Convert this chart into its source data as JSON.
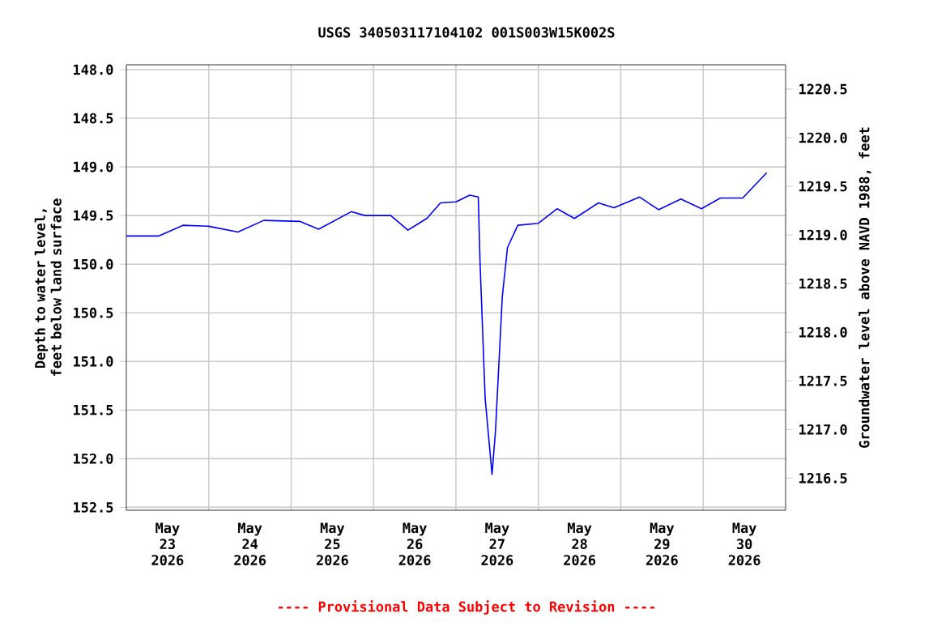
{
  "chart_data": {
    "type": "line",
    "title": "USGS 340503117104102 001S003W15K002S",
    "ylabel": "Depth to water level, feet below land surface",
    "y2label": "Groundwater level above NAVD 1988, feet",
    "annotations": [
      "---- Provisional Data Subject to Revision ----"
    ],
    "xlim": [
      "2026-05-23T00:00",
      "2026-05-31T00:00"
    ],
    "xticks": [
      {
        "value": "2026-05-23T12:00",
        "label": "May 23 2026"
      },
      {
        "value": "2026-05-24T00:00",
        "label": null
      },
      {
        "value": "2026-05-24T12:00",
        "label": "May 24 2026"
      },
      {
        "value": "2026-05-25T00:00",
        "label": null
      },
      {
        "value": "2026-05-25T12:00",
        "label": "May 25 2026"
      },
      {
        "value": "2026-05-26T00:00",
        "label": null
      },
      {
        "value": "2026-05-26T12:00",
        "label": "May 26 2026"
      },
      {
        "value": "2026-05-27T00:00",
        "label": null
      },
      {
        "value": "2026-05-27T12:00",
        "label": "May 27 2026"
      },
      {
        "value": "2026-05-28T00:00",
        "label": null
      },
      {
        "value": "2026-05-28T12:00",
        "label": "May 28 2026"
      },
      {
        "value": "2026-05-29T00:00",
        "label": null
      },
      {
        "value": "2026-05-29T12:00",
        "label": "May 29 2026"
      },
      {
        "value": "2026-05-30T00:00",
        "label": null
      },
      {
        "value": "2026-05-30T12:00",
        "label": "May 30 2026"
      }
    ],
    "ylim": [
      152.53,
      147.95
    ],
    "yticks": [
      {
        "value": 148,
        "label": "148.0"
      },
      148.5,
      {
        "value": 149,
        "label": "149.0"
      },
      149.5,
      {
        "value": 150,
        "label": "150.0"
      },
      150.5,
      {
        "value": 151,
        "label": "151.0"
      },
      151.5,
      {
        "value": 152,
        "label": "152.0"
      },
      152.5
    ],
    "y2lim": [
      1216.17,
      1220.75
    ],
    "y2ticks": [
      1216.5,
      {
        "value": 1217,
        "label": "1217.0"
      },
      1217.5,
      {
        "value": 1218,
        "label": "1218.0"
      },
      1218.5,
      {
        "value": 1219,
        "label": "1219.0"
      },
      1219.5,
      {
        "value": 1220,
        "label": "1220.0"
      },
      1220.5
    ],
    "grid": true,
    "marker": "none",
    "line_style": "solid",
    "series": [
      {
        "color": "#0000ff",
        "x": [
          "2026-05-23T00:00",
          "2026-05-23T09:30",
          "2026-05-23T16:30",
          "2026-05-24T00:00",
          "2026-05-24T08:30",
          "2026-05-24T16:00",
          "2026-05-25T02:30",
          "2026-05-25T08:00",
          "2026-05-25T17:30",
          "2026-05-25T21:30",
          "2026-05-26T05:00",
          "2026-05-26T10:00",
          "2026-05-26T15:30",
          "2026-05-26T19:30",
          "2026-05-27T00:00",
          "2026-05-27T04:00",
          "2026-05-27T06:30",
          "2026-05-27T07:00",
          "2026-05-27T08:30",
          "2026-05-27T10:30",
          "2026-05-27T11:30",
          "2026-05-27T13:30",
          "2026-05-27T15:00",
          "2026-05-27T18:00",
          "2026-05-28T00:00",
          "2026-05-28T05:30",
          "2026-05-28T10:30",
          "2026-05-28T17:30",
          "2026-05-28T22:00",
          "2026-05-29T05:30",
          "2026-05-29T11:00",
          "2026-05-29T17:30",
          "2026-05-29T23:30",
          "2026-05-30T05:00",
          "2026-05-30T11:30",
          "2026-05-30T18:30"
        ],
        "values": [
          149.71,
          149.71,
          149.6,
          149.61,
          149.67,
          149.55,
          149.56,
          149.64,
          149.46,
          149.5,
          149.5,
          149.65,
          149.53,
          149.37,
          149.36,
          149.29,
          149.31,
          149.97,
          151.38,
          152.16,
          151.72,
          150.33,
          149.83,
          149.6,
          149.58,
          149.43,
          149.53,
          149.37,
          149.42,
          149.31,
          149.44,
          149.33,
          149.43,
          149.32,
          149.32,
          149.06
        ]
      }
    ]
  }
}
